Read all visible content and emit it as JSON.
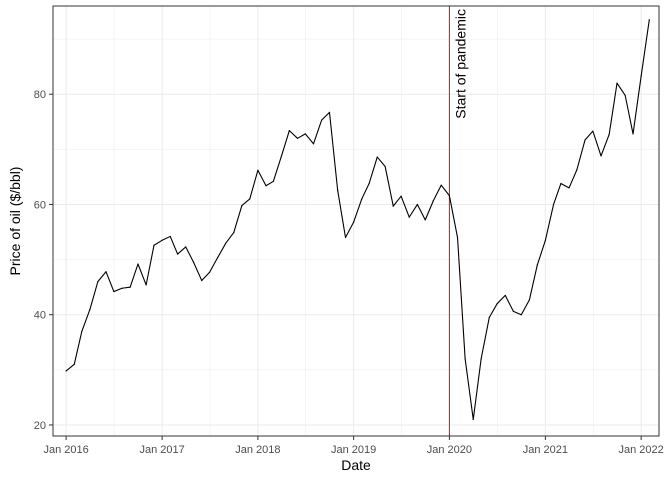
{
  "chart_data": {
    "type": "line",
    "xlabel": "Date",
    "ylabel": "Price of oil ($/bbl)",
    "ylim": [
      18,
      96
    ],
    "xlim": [
      "2015-11-12",
      "2022-03-10"
    ],
    "grid": true,
    "x_ticks": [
      {
        "date": "2016-01-01",
        "label": "Jan 2016"
      },
      {
        "date": "2017-01-01",
        "label": "Jan 2017"
      },
      {
        "date": "2018-01-01",
        "label": "Jan 2018"
      },
      {
        "date": "2019-01-01",
        "label": "Jan 2019"
      },
      {
        "date": "2020-01-01",
        "label": "Jan 2020"
      },
      {
        "date": "2021-01-01",
        "label": "Jan 2021"
      },
      {
        "date": "2022-01-01",
        "label": "Jan 2022"
      }
    ],
    "y_ticks": [
      20,
      40,
      60,
      80
    ],
    "series": [
      {
        "line_color": "#000000",
        "x": [
          "2016-01",
          "2016-02",
          "2016-03",
          "2016-04",
          "2016-05",
          "2016-06",
          "2016-07",
          "2016-08",
          "2016-09",
          "2016-10",
          "2016-11",
          "2016-12",
          "2017-01",
          "2017-02",
          "2017-03",
          "2017-04",
          "2017-05",
          "2017-06",
          "2017-07",
          "2017-08",
          "2017-09",
          "2017-10",
          "2017-11",
          "2017-12",
          "2018-01",
          "2018-02",
          "2018-03",
          "2018-04",
          "2018-05",
          "2018-06",
          "2018-07",
          "2018-08",
          "2018-09",
          "2018-10",
          "2018-11",
          "2018-12",
          "2019-01",
          "2019-02",
          "2019-03",
          "2019-04",
          "2019-05",
          "2019-06",
          "2019-07",
          "2019-08",
          "2019-09",
          "2019-10",
          "2019-11",
          "2019-12",
          "2020-01",
          "2020-02",
          "2020-03",
          "2020-04",
          "2020-05",
          "2020-06",
          "2020-07",
          "2020-08",
          "2020-09",
          "2020-10",
          "2020-11",
          "2020-12",
          "2021-01",
          "2021-02",
          "2021-03",
          "2021-04",
          "2021-05",
          "2021-06",
          "2021-07",
          "2021-08",
          "2021-09",
          "2021-10",
          "2021-11",
          "2021-12",
          "2022-01",
          "2022-02"
        ],
        "values": [
          29.8,
          31.0,
          37.0,
          41.0,
          46.0,
          47.8,
          44.2,
          44.8,
          45.0,
          49.2,
          45.4,
          52.6,
          53.5,
          54.2,
          51.0,
          52.3,
          49.5,
          46.2,
          47.7,
          50.4,
          53.0,
          54.9,
          59.8,
          61.0,
          66.2,
          63.4,
          64.2,
          68.8,
          73.4,
          72.0,
          72.8,
          71.0,
          75.3,
          76.7,
          62.6,
          54.0,
          56.8,
          61.0,
          63.8,
          68.6,
          66.9,
          59.7,
          61.5,
          57.7,
          60.0,
          57.2,
          60.7,
          63.5,
          61.6,
          54.0,
          32.0,
          21.0,
          32.0,
          39.5,
          42.0,
          43.5,
          40.6,
          40.0,
          42.7,
          49.0,
          53.5,
          60.0,
          63.8,
          63.0,
          66.3,
          71.7,
          73.3,
          68.8,
          72.7,
          82.0,
          79.8,
          72.8,
          83.3,
          93.5
        ]
      }
    ],
    "annotations": [
      {
        "type": "vline",
        "x": "2020-01-01",
        "color": "#ff0000",
        "label": "Start of pandemic"
      }
    ]
  }
}
